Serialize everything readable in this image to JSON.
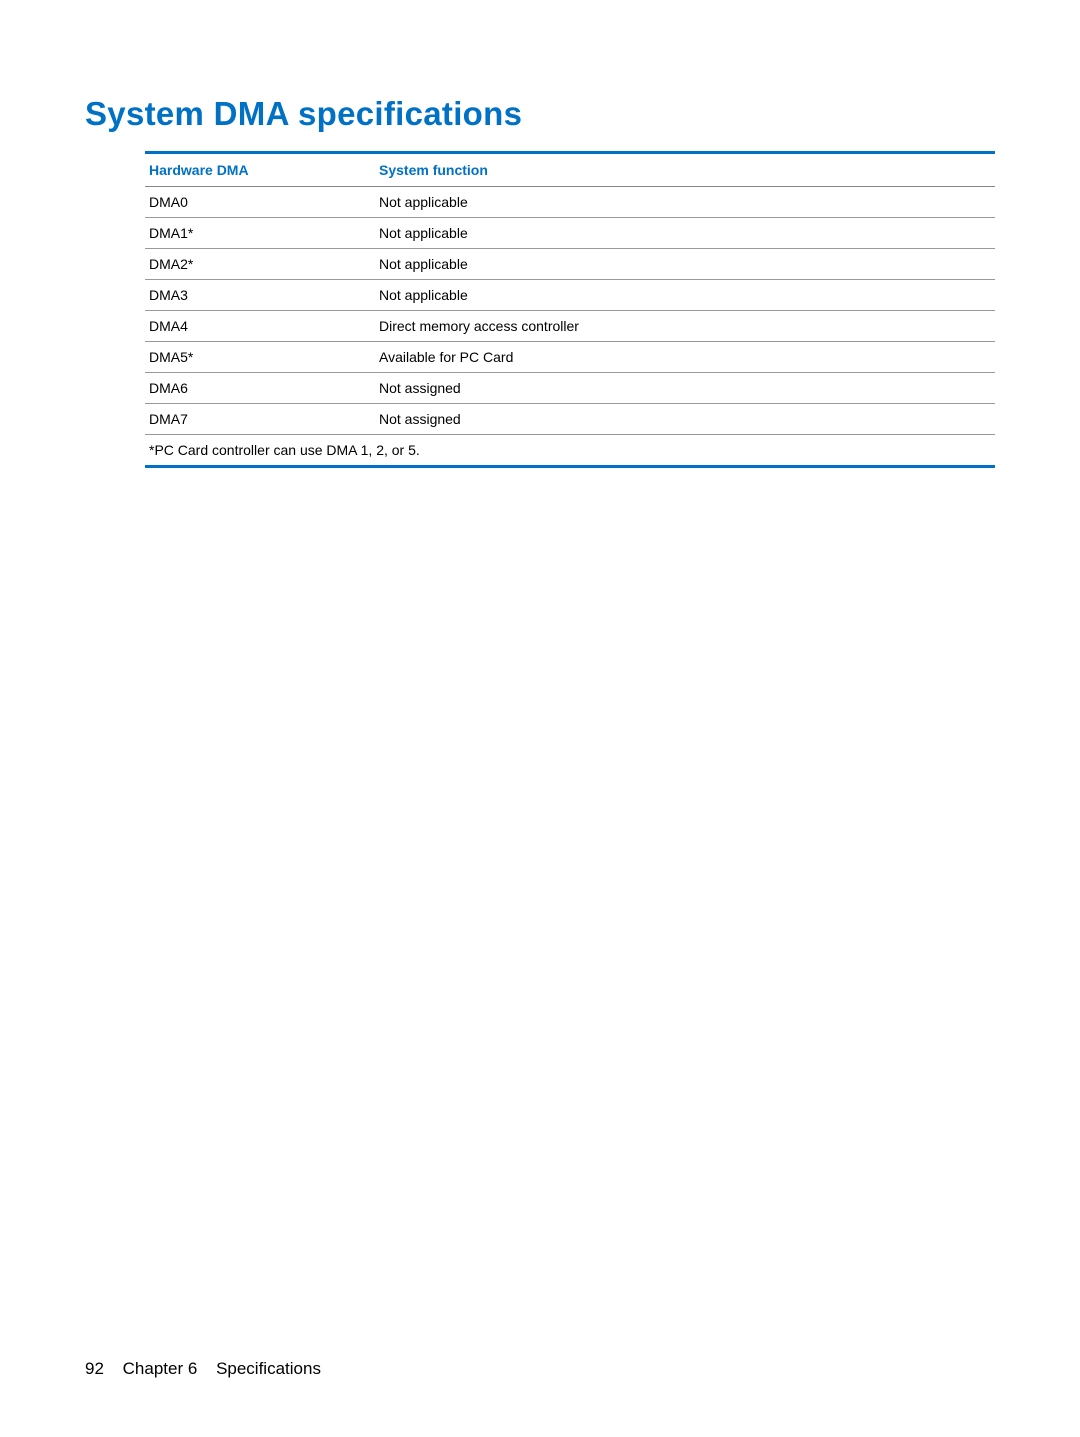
{
  "heading": "System DMA specifications",
  "table": {
    "columns": [
      "Hardware DMA",
      "System function"
    ],
    "rows": [
      [
        "DMA0",
        "Not applicable"
      ],
      [
        "DMA1*",
        "Not applicable"
      ],
      [
        "DMA2*",
        "Not applicable"
      ],
      [
        "DMA3",
        "Not applicable"
      ],
      [
        "DMA4",
        "Direct memory access controller"
      ],
      [
        "DMA5*",
        "Available for PC Card"
      ],
      [
        "DMA6",
        "Not assigned"
      ],
      [
        "DMA7",
        "Not assigned"
      ]
    ],
    "footnote": "*PC Card controller can use DMA 1, 2, or 5."
  },
  "footer": {
    "page_number": "92",
    "chapter": "Chapter 6",
    "section": "Specifications"
  },
  "colors": {
    "accent": "#0071c5",
    "text": "#000000",
    "rule": "#999999",
    "background": "#ffffff"
  }
}
